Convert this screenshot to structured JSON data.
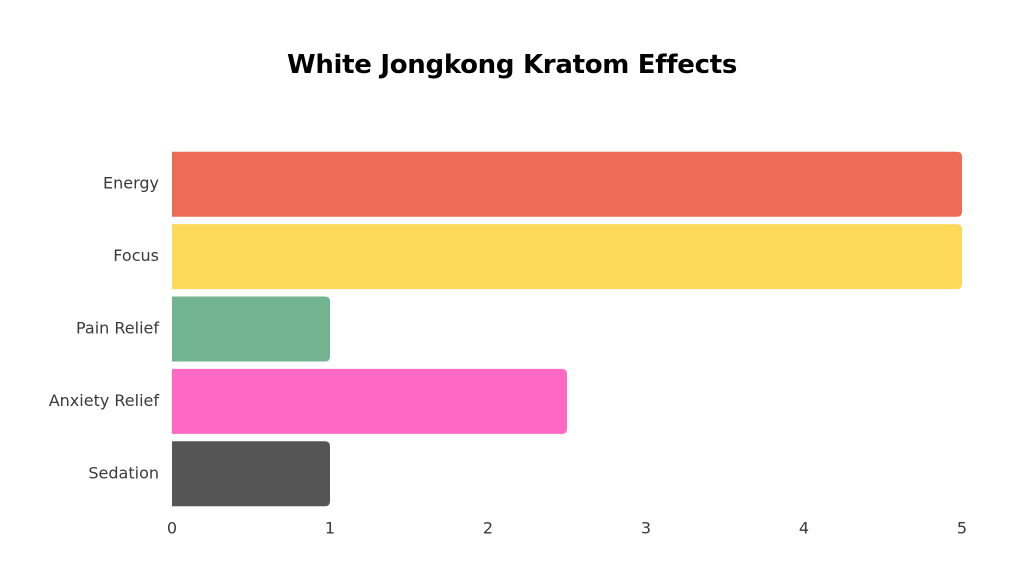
{
  "chart_data": {
    "type": "bar",
    "orientation": "horizontal",
    "title": "White Jongkong Kratom Effects",
    "xlabel": "",
    "ylabel": "",
    "categories": [
      "Energy",
      "Focus",
      "Pain Relief",
      "Anxiety Relief",
      "Sedation"
    ],
    "values": [
      5,
      5,
      1,
      2.5,
      1
    ],
    "colors": [
      "#ec6c55",
      "#fdd95a",
      "#72b48f",
      "#ff69c5",
      "#555555"
    ],
    "xlim": [
      0,
      5
    ],
    "x_ticks": [
      "0",
      "1",
      "2",
      "3",
      "4",
      "5"
    ],
    "grid": false,
    "legend": "none"
  }
}
